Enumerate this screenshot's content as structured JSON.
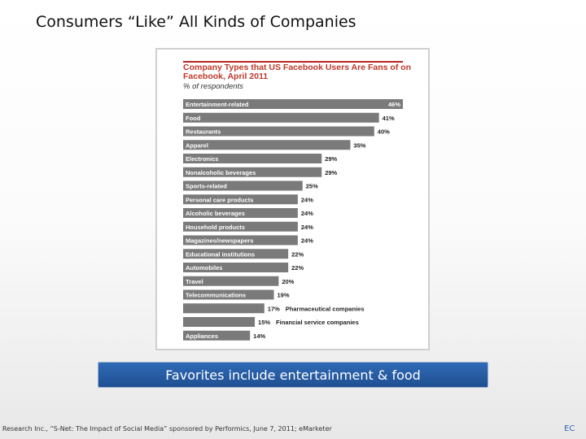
{
  "slide": {
    "title": "Consumers “Like” All Kinds of Companies",
    "banner": "Favorites include entertainment & food",
    "source": "I Research Inc., “S-Net: The Impact of Social Media” sponsored by Performics, June 7, 2011; eMarketer",
    "page_tag": "EC"
  },
  "colors": {
    "bar": "#7a7a7a",
    "title_red": "#c0392b",
    "banner_blue": "#2f6ab5"
  },
  "chart_data": {
    "type": "bar",
    "orientation": "horizontal",
    "title": "Company Types that US Facebook Users Are Fans of on Facebook, April 2011",
    "subtitle": "% of respondents",
    "xlim": [
      0,
      46
    ],
    "grid": false,
    "bars": [
      {
        "label": "Entertainment-related",
        "value": 46,
        "value_label": "46%",
        "label_position": "inside"
      },
      {
        "label": "Food",
        "value": 41,
        "value_label": "41%",
        "label_position": "inside"
      },
      {
        "label": "Restaurants",
        "value": 40,
        "value_label": "40%",
        "label_position": "inside"
      },
      {
        "label": "Apparel",
        "value": 35,
        "value_label": "35%",
        "label_position": "inside"
      },
      {
        "label": "Electronics",
        "value": 29,
        "value_label": "29%",
        "label_position": "inside"
      },
      {
        "label": "Nonalcoholic beverages",
        "value": 29,
        "value_label": "29%",
        "label_position": "inside"
      },
      {
        "label": "Sports-related",
        "value": 25,
        "value_label": "25%",
        "label_position": "inside"
      },
      {
        "label": "Personal care products",
        "value": 24,
        "value_label": "24%",
        "label_position": "inside"
      },
      {
        "label": "Alcoholic beverages",
        "value": 24,
        "value_label": "24%",
        "label_position": "inside"
      },
      {
        "label": "Household products",
        "value": 24,
        "value_label": "24%",
        "label_position": "inside"
      },
      {
        "label": "Magazines/newspapers",
        "value": 24,
        "value_label": "24%",
        "label_position": "inside"
      },
      {
        "label": "Educational institutions",
        "value": 22,
        "value_label": "22%",
        "label_position": "inside"
      },
      {
        "label": "Automobiles",
        "value": 22,
        "value_label": "22%",
        "label_position": "inside"
      },
      {
        "label": "Travel",
        "value": 20,
        "value_label": "20%",
        "label_position": "inside"
      },
      {
        "label": "Telecommunications",
        "value": 19,
        "value_label": "19%",
        "label_position": "inside"
      },
      {
        "label": "Pharmaceutical companies",
        "value": 17,
        "value_label": "17%",
        "label_position": "outside"
      },
      {
        "label": "Financial service companies",
        "value": 15,
        "value_label": "15%",
        "label_position": "outside"
      },
      {
        "label": "Appliances",
        "value": 14,
        "value_label": "14%",
        "label_position": "inside"
      }
    ]
  }
}
